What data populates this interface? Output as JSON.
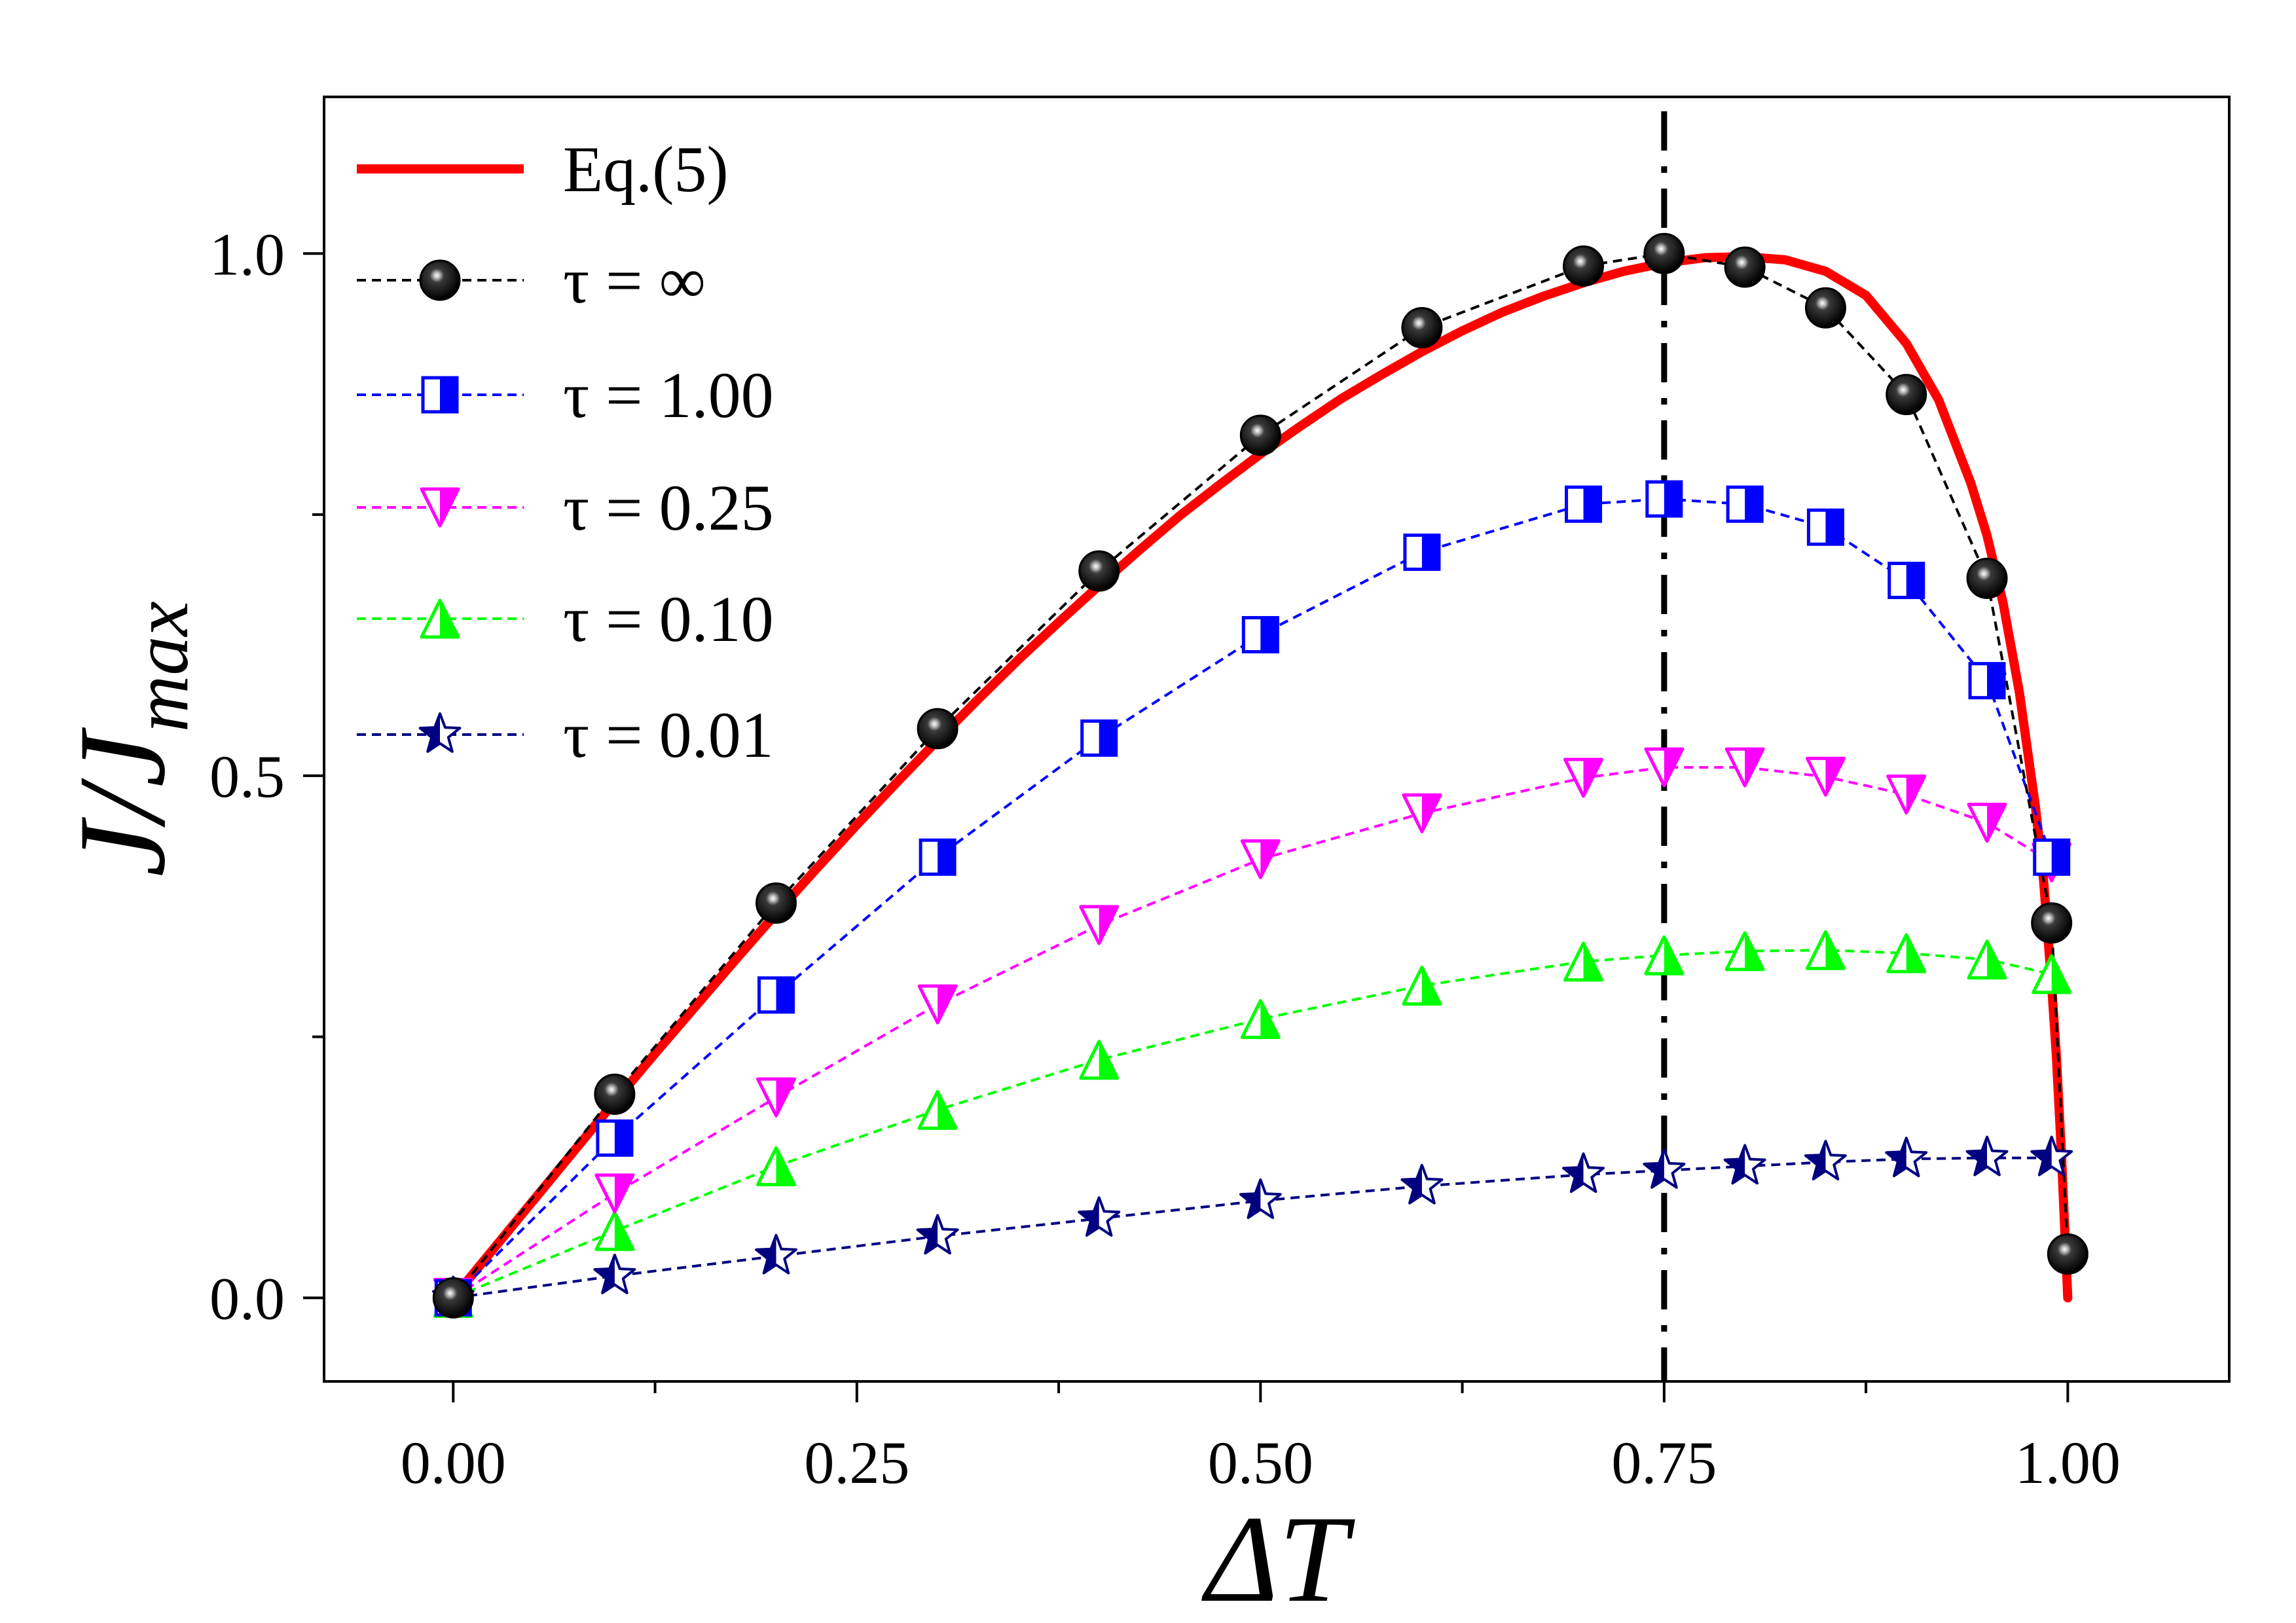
{
  "chart_data": {
    "type": "line",
    "xlabel": "ΔT",
    "ylabel": "J/J_max",
    "ylabel_main": "J/J",
    "ylabel_sub": "max",
    "xlim": [
      -0.08,
      1.1
    ],
    "ylim": [
      -0.08,
      1.15
    ],
    "x_ticks": [
      0.0,
      0.25,
      0.5,
      0.75,
      1.0
    ],
    "x_tick_labels": [
      "0.00",
      "0.25",
      "0.50",
      "0.75",
      "1.00"
    ],
    "x_minor_ticks": [
      0.125,
      0.375,
      0.625,
      0.875
    ],
    "y_ticks": [
      0.0,
      0.5,
      1.0
    ],
    "y_tick_labels": [
      "0.0",
      "0.5",
      "1.0"
    ],
    "y_minor_ticks": [
      0.25,
      0.75
    ],
    "vline": {
      "x": 0.75,
      "style": "dash-dot",
      "color": "#000000"
    },
    "curve": {
      "name": "Eq.(5)",
      "legend_label": "Eq.(5)",
      "color": "#ff0000",
      "x": [
        0.0,
        0.025,
        0.05,
        0.075,
        0.1,
        0.125,
        0.15,
        0.175,
        0.2,
        0.225,
        0.25,
        0.275,
        0.3,
        0.325,
        0.35,
        0.375,
        0.4,
        0.425,
        0.45,
        0.475,
        0.5,
        0.525,
        0.55,
        0.575,
        0.6,
        0.625,
        0.65,
        0.675,
        0.7,
        0.725,
        0.75,
        0.775,
        0.8,
        0.825,
        0.85,
        0.875,
        0.9,
        0.92,
        0.94,
        0.95,
        0.96,
        0.97,
        0.98,
        0.985,
        0.99,
        0.993,
        0.996,
        0.998,
        1.0
      ],
      "y": [
        0.0,
        0.047,
        0.094,
        0.141,
        0.188,
        0.234,
        0.279,
        0.324,
        0.368,
        0.411,
        0.453,
        0.494,
        0.534,
        0.573,
        0.611,
        0.647,
        0.682,
        0.716,
        0.749,
        0.779,
        0.808,
        0.835,
        0.861,
        0.884,
        0.906,
        0.926,
        0.944,
        0.959,
        0.972,
        0.983,
        0.991,
        0.996,
        0.997,
        0.994,
        0.983,
        0.96,
        0.914,
        0.86,
        0.78,
        0.73,
        0.665,
        0.58,
        0.47,
        0.4,
        0.3,
        0.23,
        0.14,
        0.07,
        0.0
      ]
    },
    "series": [
      {
        "name": "tau = infinity",
        "legend_label": "τ = ∞",
        "marker": "sphere",
        "color": "#000000",
        "x": [
          0.0,
          0.1,
          0.2,
          0.3,
          0.4,
          0.5,
          0.6,
          0.7,
          0.75,
          0.8,
          0.85,
          0.9,
          0.95,
          0.99,
          1.0
        ],
        "y": [
          0.0,
          0.195,
          0.378,
          0.545,
          0.696,
          0.826,
          0.929,
          0.988,
          1.0,
          0.987,
          0.948,
          0.865,
          0.689,
          0.359,
          0.042
        ]
      },
      {
        "name": "tau = 1.00",
        "legend_label": "τ = 1.00",
        "marker": "half-square",
        "color": "#0000ff",
        "x": [
          0.0,
          0.1,
          0.2,
          0.3,
          0.4,
          0.5,
          0.6,
          0.7,
          0.75,
          0.8,
          0.85,
          0.9,
          0.95,
          0.99
        ],
        "y": [
          0.0,
          0.153,
          0.29,
          0.422,
          0.536,
          0.635,
          0.714,
          0.76,
          0.765,
          0.76,
          0.738,
          0.687,
          0.591,
          0.422
        ]
      },
      {
        "name": "tau = 0.25",
        "legend_label": "τ = 0.25",
        "marker": "down-triangle",
        "color": "#ff00ff",
        "x": [
          0.0,
          0.1,
          0.2,
          0.3,
          0.4,
          0.5,
          0.6,
          0.7,
          0.75,
          0.8,
          0.85,
          0.9,
          0.95,
          0.99
        ],
        "y": [
          0.0,
          0.1,
          0.192,
          0.281,
          0.357,
          0.42,
          0.464,
          0.498,
          0.508,
          0.508,
          0.499,
          0.482,
          0.455,
          0.417
        ]
      },
      {
        "name": "tau = 0.10",
        "legend_label": "τ = 0.10",
        "marker": "up-triangle",
        "color": "#00ff00",
        "x": [
          0.0,
          0.1,
          0.2,
          0.3,
          0.4,
          0.5,
          0.6,
          0.7,
          0.75,
          0.8,
          0.85,
          0.9,
          0.95,
          0.99
        ],
        "y": [
          0.0,
          0.064,
          0.126,
          0.18,
          0.228,
          0.267,
          0.299,
          0.322,
          0.328,
          0.332,
          0.333,
          0.33,
          0.324,
          0.31
        ]
      },
      {
        "name": "tau = 0.01",
        "legend_label": "τ = 0.01",
        "marker": "star",
        "color": "#000080",
        "x": [
          0.0,
          0.1,
          0.2,
          0.3,
          0.4,
          0.5,
          0.6,
          0.7,
          0.75,
          0.8,
          0.85,
          0.9,
          0.95,
          0.99
        ],
        "y": [
          0.0,
          0.021,
          0.04,
          0.059,
          0.076,
          0.093,
          0.107,
          0.118,
          0.122,
          0.126,
          0.13,
          0.133,
          0.134,
          0.134
        ]
      }
    ]
  }
}
